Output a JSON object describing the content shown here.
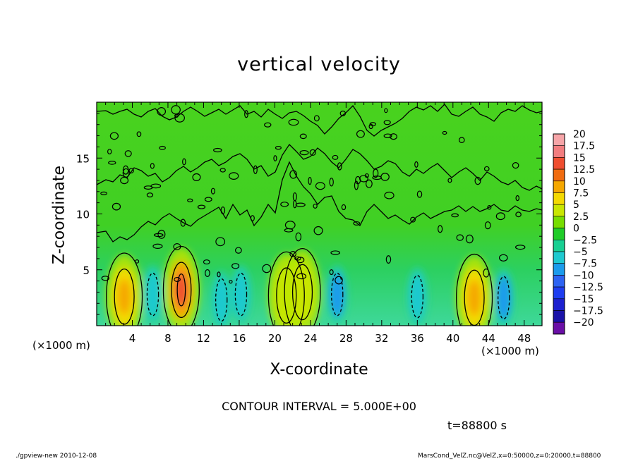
{
  "chart_data": {
    "type": "heatmap",
    "title": "vertical velocity",
    "xlabel": "X-coordinate",
    "ylabel": "Z-coordinate",
    "x_unit_label": "(×1000 m)",
    "x_ticks": [
      4,
      8,
      12,
      16,
      20,
      24,
      28,
      32,
      36,
      40,
      44,
      48
    ],
    "y_ticks": [
      5,
      10,
      15
    ],
    "xlim": [
      0,
      50
    ],
    "ylim": [
      0,
      20
    ],
    "colorbar": {
      "labels": [
        "20",
        "17.5",
        "15",
        "12.5",
        "10",
        "7.5",
        "5",
        "2.5",
        "0",
        "-2.5",
        "-5",
        "-7.5",
        "-10",
        "-12.5",
        "-15",
        "-17.5",
        "-20"
      ],
      "colors": [
        "#f6a5a8",
        "#f27d7f",
        "#ef4e30",
        "#f06b10",
        "#f5a700",
        "#f4d900",
        "#c9e600",
        "#77dd00",
        "#1fcc28",
        "#18cf92",
        "#1ec9d0",
        "#1b9bec",
        "#2d63f2",
        "#1e3df0",
        "#1c20cf",
        "#1a12a8",
        "#6a0fa6"
      ]
    },
    "updrafts": [
      {
        "x": 3.1,
        "z": 2.6,
        "w": 9
      },
      {
        "x": 9.5,
        "z": 3.2,
        "w": 16
      },
      {
        "x": 21.3,
        "z": 2.7,
        "w": 6
      },
      {
        "x": 23.1,
        "z": 3.0,
        "w": 6
      },
      {
        "x": 42.4,
        "z": 2.5,
        "w": 9
      }
    ],
    "downdrafts": [
      {
        "x": 6.3,
        "z": 2.8,
        "w": -5
      },
      {
        "x": 14.0,
        "z": 2.3,
        "w": -4
      },
      {
        "x": 16.2,
        "z": 2.8,
        "w": -4
      },
      {
        "x": 27.0,
        "z": 2.8,
        "w": -7
      },
      {
        "x": 36.0,
        "z": 2.6,
        "w": -5
      },
      {
        "x": 45.7,
        "z": 2.5,
        "w": -7
      }
    ]
  },
  "contour_interval": "CONTOUR INTERVAL = 5.000E+00",
  "time_label": "t=88800 s",
  "footer_left": "./gpview-new 2010-12-08",
  "footer_right": "MarsCond_VelZ.nc@VelZ,x=0:50000,z=0:20000,t=88800"
}
